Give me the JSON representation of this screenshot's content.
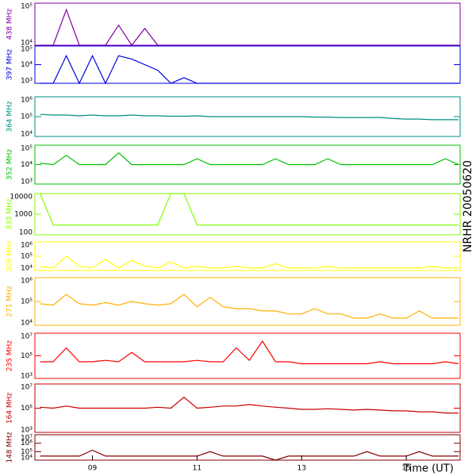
{
  "side_label": "NRHR 20050620",
  "chart_data": [
    {
      "type": "line",
      "ylabel": "438 MHz",
      "color": "#8000a0",
      "log": true,
      "ylim": [
        10000,
        100000
      ],
      "yticks": [
        {
          "value": 10000,
          "label": "10⁴"
        },
        {
          "value": 100000,
          "label": "10⁵"
        }
      ],
      "x": [
        8,
        8.25,
        8.5,
        8.75,
        9,
        9.25,
        9.5,
        9.75,
        10,
        10.25,
        10.5,
        10.75,
        11,
        11.25,
        11.5,
        11.75,
        12,
        12.25,
        12.5,
        12.75,
        13,
        13.25,
        13.5,
        13.75,
        14,
        14.25,
        14.5,
        14.75,
        15,
        15.25,
        15.5,
        15.75,
        16
      ],
      "values": [
        10000,
        10000,
        70000,
        10000,
        10000,
        10000,
        30000,
        10000,
        25000,
        10000,
        10000,
        10000,
        10000,
        10000,
        10000,
        10000,
        10000,
        10000,
        10000,
        10000,
        10000,
        10000,
        10000,
        10000,
        10000,
        10000,
        10000,
        10000,
        10000,
        10000,
        10000,
        10000,
        10000
      ]
    },
    {
      "type": "line",
      "ylabel": "397 MHz",
      "color": "#0000e0",
      "log": true,
      "ylim": [
        1000,
        100000
      ],
      "yticks": [
        {
          "value": 1000,
          "label": "10³"
        },
        {
          "value": 10000,
          "label": "10⁴"
        },
        {
          "value": 100000,
          "label": "10⁵"
        }
      ],
      "x": [
        8,
        8.25,
        8.5,
        8.75,
        9,
        9.25,
        9.5,
        9.75,
        10,
        10.25,
        10.5,
        10.75,
        11,
        11.25,
        11.5,
        11.75,
        12,
        12.25,
        12.5,
        12.75,
        13,
        13.25,
        13.5,
        13.75,
        14,
        14.25,
        14.5,
        14.75,
        15,
        15.25,
        15.5,
        15.75,
        16
      ],
      "values": [
        1000,
        1000,
        30000,
        1000,
        30000,
        1000,
        30000,
        20000,
        10000,
        5000,
        1000,
        2000,
        1000,
        1000,
        1000,
        1000,
        1000,
        1000,
        1000,
        1000,
        1000,
        1000,
        1000,
        1000,
        1000,
        1000,
        1000,
        1000,
        1000,
        1000,
        1000,
        1000,
        1000
      ]
    },
    {
      "type": "line",
      "ylabel": "364 MHz",
      "color": "#009080",
      "log": true,
      "ylim": [
        10000,
        1000000
      ],
      "yticks": [
        {
          "value": 10000,
          "label": "10⁴"
        },
        {
          "value": 100000,
          "label": "10⁵"
        },
        {
          "value": 1000000,
          "label": "10⁶"
        }
      ],
      "x": [
        8,
        8.25,
        8.5,
        8.75,
        9,
        9.25,
        9.5,
        9.75,
        10,
        10.25,
        10.5,
        10.75,
        11,
        11.25,
        11.5,
        11.75,
        12,
        12.25,
        12.5,
        12.75,
        13,
        13.25,
        13.5,
        13.75,
        14,
        14.25,
        14.5,
        14.75,
        15,
        15.25,
        15.5,
        15.75,
        16
      ],
      "values": [
        130000,
        120000,
        120000,
        110000,
        120000,
        110000,
        110000,
        120000,
        110000,
        110000,
        105000,
        105000,
        110000,
        100000,
        100000,
        100000,
        100000,
        100000,
        100000,
        100000,
        100000,
        95000,
        95000,
        90000,
        90000,
        90000,
        90000,
        80000,
        75000,
        75000,
        70000,
        70000,
        70000
      ]
    },
    {
      "type": "line",
      "ylabel": "352 MHz",
      "color": "#00c000",
      "log": true,
      "ylim": [
        1000,
        100000
      ],
      "yticks": [
        {
          "value": 1000,
          "label": "10³"
        },
        {
          "value": 10000,
          "label": "10⁴"
        },
        {
          "value": 100000,
          "label": "10⁵"
        }
      ],
      "x": [
        8,
        8.25,
        8.5,
        8.75,
        9,
        9.25,
        9.5,
        9.75,
        10,
        10.25,
        10.5,
        10.75,
        11,
        11.25,
        11.5,
        11.75,
        12,
        12.25,
        12.5,
        12.75,
        13,
        13.25,
        13.5,
        13.75,
        14,
        14.25,
        14.5,
        14.75,
        15,
        15.25,
        15.5,
        15.75,
        16
      ],
      "values": [
        12000,
        10000,
        30000,
        10000,
        10000,
        10000,
        40000,
        10000,
        10000,
        10000,
        10000,
        10000,
        20000,
        10000,
        10000,
        10000,
        10000,
        10000,
        20000,
        10000,
        10000,
        10000,
        20000,
        10000,
        10000,
        10000,
        10000,
        10000,
        10000,
        10000,
        10000,
        20000,
        10000
      ]
    },
    {
      "type": "line",
      "ylabel": "333 MHz",
      "color": "#80ff00",
      "log": true,
      "ylim": [
        100,
        10000
      ],
      "yticks": [
        100,
        1000,
        10000
      ],
      "x": [
        8,
        8.25,
        8.5,
        8.75,
        9,
        9.25,
        9.5,
        9.75,
        10,
        10.25,
        10.5,
        10.75,
        11,
        11.25,
        11.5,
        11.75,
        12,
        12.25,
        12.5,
        12.75,
        13,
        13.25,
        13.5,
        13.75,
        14,
        14.25,
        14.5,
        14.75,
        15,
        15.25,
        15.5,
        15.75,
        16
      ],
      "values": [
        10000,
        300,
        300,
        300,
        300,
        300,
        300,
        300,
        300,
        300,
        10000,
        10000,
        300,
        300,
        300,
        300,
        300,
        300,
        300,
        300,
        300,
        300,
        300,
        300,
        300,
        300,
        300,
        300,
        300,
        300,
        300,
        300,
        300
      ]
    },
    {
      "type": "line",
      "ylabel": "309 MHz",
      "color": "#ffff00",
      "log": true,
      "ylim": [
        10000,
        1000000
      ],
      "yticks": [
        {
          "value": 10000,
          "label": "10⁴"
        },
        {
          "value": 100000,
          "label": "10⁵"
        },
        {
          "value": 1000000,
          "label": "10⁶"
        }
      ],
      "x": [
        8,
        8.25,
        8.5,
        8.75,
        9,
        9.25,
        9.5,
        9.75,
        10,
        10.25,
        10.5,
        10.75,
        11,
        11.25,
        11.5,
        11.75,
        12,
        12.25,
        12.5,
        12.75,
        13,
        13.25,
        13.5,
        13.75,
        14,
        14.25,
        14.5,
        14.75,
        15,
        15.25,
        15.5,
        15.75,
        16
      ],
      "values": [
        20000,
        15000,
        100000,
        20000,
        15000,
        60000,
        15000,
        50000,
        20000,
        15000,
        40000,
        15000,
        20000,
        15000,
        15000,
        20000,
        15000,
        15000,
        30000,
        15000,
        15000,
        15000,
        20000,
        15000,
        15000,
        15000,
        15000,
        15000,
        15000,
        15000,
        20000,
        15000,
        15000
      ]
    },
    {
      "type": "line",
      "ylabel": "271 MHz",
      "color": "#ffb000",
      "log": true,
      "ylim": [
        10000,
        1000000
      ],
      "yticks": [
        {
          "value": 10000,
          "label": "10⁴"
        },
        {
          "value": 100000,
          "label": "10⁵"
        },
        {
          "value": 1000000,
          "label": "10⁶"
        }
      ],
      "x": [
        8,
        8.25,
        8.5,
        8.75,
        9,
        9.25,
        9.5,
        9.75,
        10,
        10.25,
        10.5,
        10.75,
        11,
        11.25,
        11.5,
        11.75,
        12,
        12.25,
        12.5,
        12.75,
        13,
        13.25,
        13.5,
        13.75,
        14,
        14.25,
        14.5,
        14.75,
        15,
        15.25,
        15.5,
        15.75,
        16
      ],
      "values": [
        80000,
        70000,
        200000,
        80000,
        70000,
        90000,
        70000,
        100000,
        80000,
        70000,
        80000,
        200000,
        60000,
        150000,
        60000,
        50000,
        50000,
        40000,
        40000,
        30000,
        30000,
        50000,
        30000,
        30000,
        20000,
        20000,
        30000,
        20000,
        20000,
        40000,
        20000,
        20000,
        20000
      ]
    },
    {
      "type": "line",
      "ylabel": "235 MHz",
      "color": "#ff0000",
      "log": true,
      "ylim": [
        1000,
        10000000
      ],
      "yticks": [
        {
          "value": 1000,
          "label": "10³"
        },
        {
          "value": 100000,
          "label": "10⁵"
        },
        {
          "value": 10000000,
          "label": "10⁷"
        }
      ],
      "x": [
        8,
        8.25,
        8.5,
        8.75,
        9,
        9.25,
        9.5,
        9.75,
        10,
        10.25,
        10.5,
        10.75,
        11,
        11.25,
        11.5,
        11.75,
        12,
        12.25,
        12.5,
        12.75,
        13,
        13.25,
        13.5,
        13.75,
        14,
        14.25,
        14.5,
        14.75,
        15,
        15.25,
        15.5,
        15.75,
        16
      ],
      "values": [
        30000,
        30000,
        500000,
        30000,
        30000,
        40000,
        30000,
        200000,
        30000,
        30000,
        30000,
        30000,
        40000,
        30000,
        30000,
        500000,
        40000,
        2000000,
        30000,
        30000,
        20000,
        20000,
        20000,
        20000,
        20000,
        20000,
        30000,
        20000,
        20000,
        20000,
        20000,
        30000,
        20000
      ]
    },
    {
      "type": "line",
      "ylabel": "164 MHz",
      "color": "#c80000",
      "log": true,
      "ylim": [
        1000,
        10000000
      ],
      "yticks": [
        {
          "value": 1000,
          "label": "10³"
        },
        {
          "value": 100000,
          "label": "10⁵"
        },
        {
          "value": 10000000,
          "label": "10⁷"
        }
      ],
      "x": [
        8,
        8.25,
        8.5,
        8.75,
        9,
        9.25,
        9.5,
        9.75,
        10,
        10.25,
        10.5,
        10.75,
        11,
        11.25,
        11.5,
        11.75,
        12,
        12.25,
        12.5,
        12.75,
        13,
        13.25,
        13.5,
        13.75,
        14,
        14.25,
        14.5,
        14.75,
        15,
        15.25,
        15.5,
        15.75,
        16
      ],
      "values": [
        120000,
        100000,
        150000,
        100000,
        100000,
        100000,
        100000,
        100000,
        100000,
        120000,
        100000,
        800000,
        100000,
        120000,
        150000,
        150000,
        200000,
        150000,
        120000,
        100000,
        80000,
        80000,
        90000,
        80000,
        70000,
        80000,
        70000,
        60000,
        60000,
        50000,
        50000,
        40000,
        40000
      ]
    },
    {
      "type": "line",
      "ylabel": "148 MHz",
      "color": "#800000",
      "log": true,
      "ylim": [
        10000,
        10000000
      ],
      "yticks": [
        {
          "value": 10000,
          "label": "10⁴"
        },
        {
          "value": 100000,
          "label": "10⁵"
        },
        {
          "value": 1000000,
          "label": "10⁶"
        },
        {
          "value": 10000000,
          "label": "10⁷"
        }
      ],
      "x": [
        8,
        8.25,
        8.5,
        8.75,
        9,
        9.25,
        9.5,
        9.75,
        10,
        10.25,
        10.5,
        10.75,
        11,
        11.25,
        11.5,
        11.75,
        12,
        12.25,
        12.5,
        12.75,
        13,
        13.25,
        13.5,
        13.75,
        14,
        14.25,
        14.5,
        14.75,
        15,
        15.25,
        15.5,
        15.75,
        16
      ],
      "values": [
        30000,
        30000,
        30000,
        30000,
        150000,
        30000,
        30000,
        30000,
        30000,
        30000,
        30000,
        30000,
        30000,
        100000,
        30000,
        30000,
        30000,
        30000,
        10000,
        30000,
        30000,
        30000,
        30000,
        30000,
        30000,
        100000,
        30000,
        30000,
        30000,
        100000,
        30000,
        30000,
        30000
      ],
      "xlabel": "Time (UT)",
      "xlim": [
        7.9,
        16.03
      ],
      "xticks": [
        {
          "value": 9,
          "label": "09"
        },
        {
          "value": 11,
          "label": "11"
        },
        {
          "value": 13,
          "label": "13"
        },
        {
          "value": 15,
          "label": "15"
        }
      ]
    }
  ]
}
